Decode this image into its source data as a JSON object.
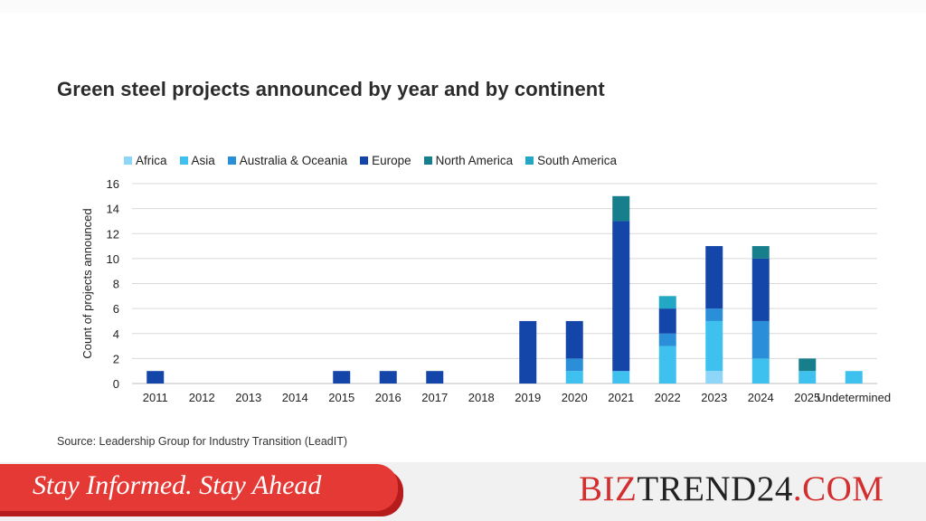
{
  "title": "Green steel projects announced by year and by continent",
  "source": "Source: Leadership Group for Industry Transition (LeadIT)",
  "banner": {
    "text": "Stay Informed. Stay Ahead"
  },
  "brand": {
    "part1": "BIZ",
    "part2": "TREND24",
    "part3": ".COM"
  },
  "chart_data": {
    "type": "bar",
    "stacked": true,
    "title": "Green steel projects announced by year and by continent",
    "ylabel": "Count of projects announced",
    "xlabel": "",
    "ylim": [
      0,
      16
    ],
    "yticks": [
      0,
      2,
      4,
      6,
      8,
      10,
      12,
      14,
      16
    ],
    "grid": true,
    "legend_position": "top",
    "categories": [
      "2011",
      "2012",
      "2013",
      "2014",
      "2015",
      "2016",
      "2017",
      "2018",
      "2019",
      "2020",
      "2021",
      "2022",
      "2023",
      "2024",
      "2025",
      "Undetermined"
    ],
    "series": [
      {
        "name": "Africa",
        "color": "#8ed6f7",
        "values": [
          0,
          0,
          0,
          0,
          0,
          0,
          0,
          0,
          0,
          0,
          0,
          0,
          1,
          0,
          0,
          0
        ]
      },
      {
        "name": "Asia",
        "color": "#3fc1f0",
        "values": [
          0,
          0,
          0,
          0,
          0,
          0,
          0,
          0,
          0,
          1,
          1,
          3,
          4,
          2,
          1,
          1
        ]
      },
      {
        "name": "Australia & Oceania",
        "color": "#2a8fd8",
        "values": [
          0,
          0,
          0,
          0,
          0,
          0,
          0,
          0,
          0,
          1,
          0,
          1,
          1,
          3,
          0,
          0
        ]
      },
      {
        "name": "Europe",
        "color": "#1346a8",
        "values": [
          1,
          0,
          0,
          0,
          1,
          1,
          1,
          0,
          5,
          3,
          12,
          2,
          5,
          5,
          0,
          0
        ]
      },
      {
        "name": "North America",
        "color": "#177e8c",
        "values": [
          0,
          0,
          0,
          0,
          0,
          0,
          0,
          0,
          0,
          0,
          2,
          0,
          0,
          1,
          1,
          0
        ]
      },
      {
        "name": "South America",
        "color": "#22a8c4",
        "values": [
          0,
          0,
          0,
          0,
          0,
          0,
          0,
          0,
          0,
          0,
          0,
          1,
          0,
          0,
          0,
          0
        ]
      }
    ]
  }
}
